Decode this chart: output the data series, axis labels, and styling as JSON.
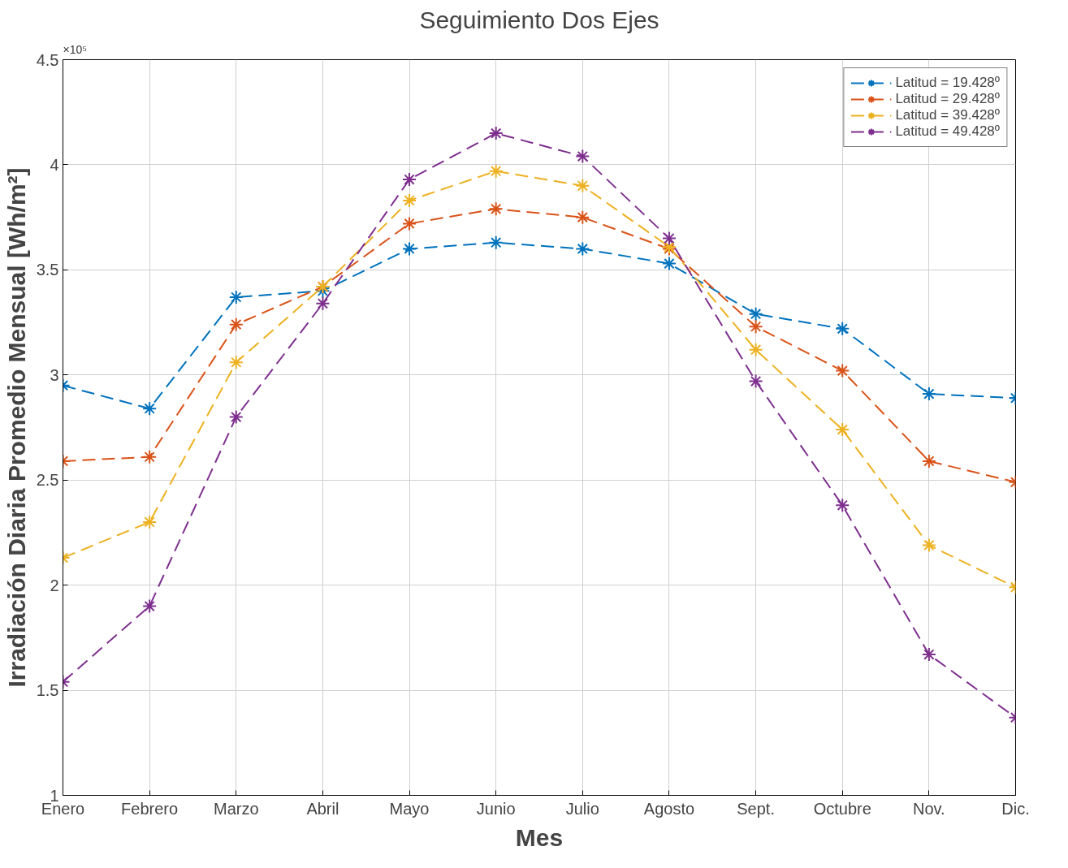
{
  "chart_data": {
    "type": "line",
    "title": "Seguimiento Dos Ejes",
    "xlabel": "Mes",
    "ylabel": "Irradiación Diaria Promedio Mensual [Wh/m²]",
    "annotations": [
      "×10⁵"
    ],
    "categories": [
      "Enero",
      "Febrero",
      "Marzo",
      "Abril",
      "Mayo",
      "Junio",
      "Julio",
      "Agosto",
      "Sept.",
      "Octubre",
      "Nov.",
      "Dic."
    ],
    "series": [
      {
        "name": "Latitud = 19.428º",
        "color": "#0072bd",
        "values": [
          2.95,
          2.84,
          3.37,
          3.4,
          3.6,
          3.63,
          3.6,
          3.53,
          3.29,
          3.22,
          2.91,
          2.89
        ]
      },
      {
        "name": "Latitud = 29.428º",
        "color": "#d95319",
        "values": [
          2.59,
          2.61,
          3.24,
          3.42,
          3.72,
          3.79,
          3.75,
          3.6,
          3.23,
          3.02,
          2.59,
          2.49
        ]
      },
      {
        "name": "Latitud = 39.428º",
        "color": "#edb120",
        "values": [
          2.13,
          2.3,
          3.06,
          3.42,
          3.83,
          3.97,
          3.9,
          3.61,
          3.12,
          2.74,
          2.19,
          1.99
        ]
      },
      {
        "name": "Latitud = 49.428º",
        "color": "#7e2f8e",
        "values": [
          1.54,
          1.9,
          2.8,
          3.34,
          3.93,
          4.15,
          4.04,
          3.65,
          2.97,
          2.38,
          1.67,
          1.37
        ]
      }
    ],
    "ylim": [
      1,
      4.5
    ],
    "yticks": [
      1,
      1.5,
      2,
      2.5,
      3,
      3.5,
      4,
      4.5
    ],
    "grid": true,
    "legend": "top right",
    "marker": "cross",
    "line_style": "dashed"
  }
}
